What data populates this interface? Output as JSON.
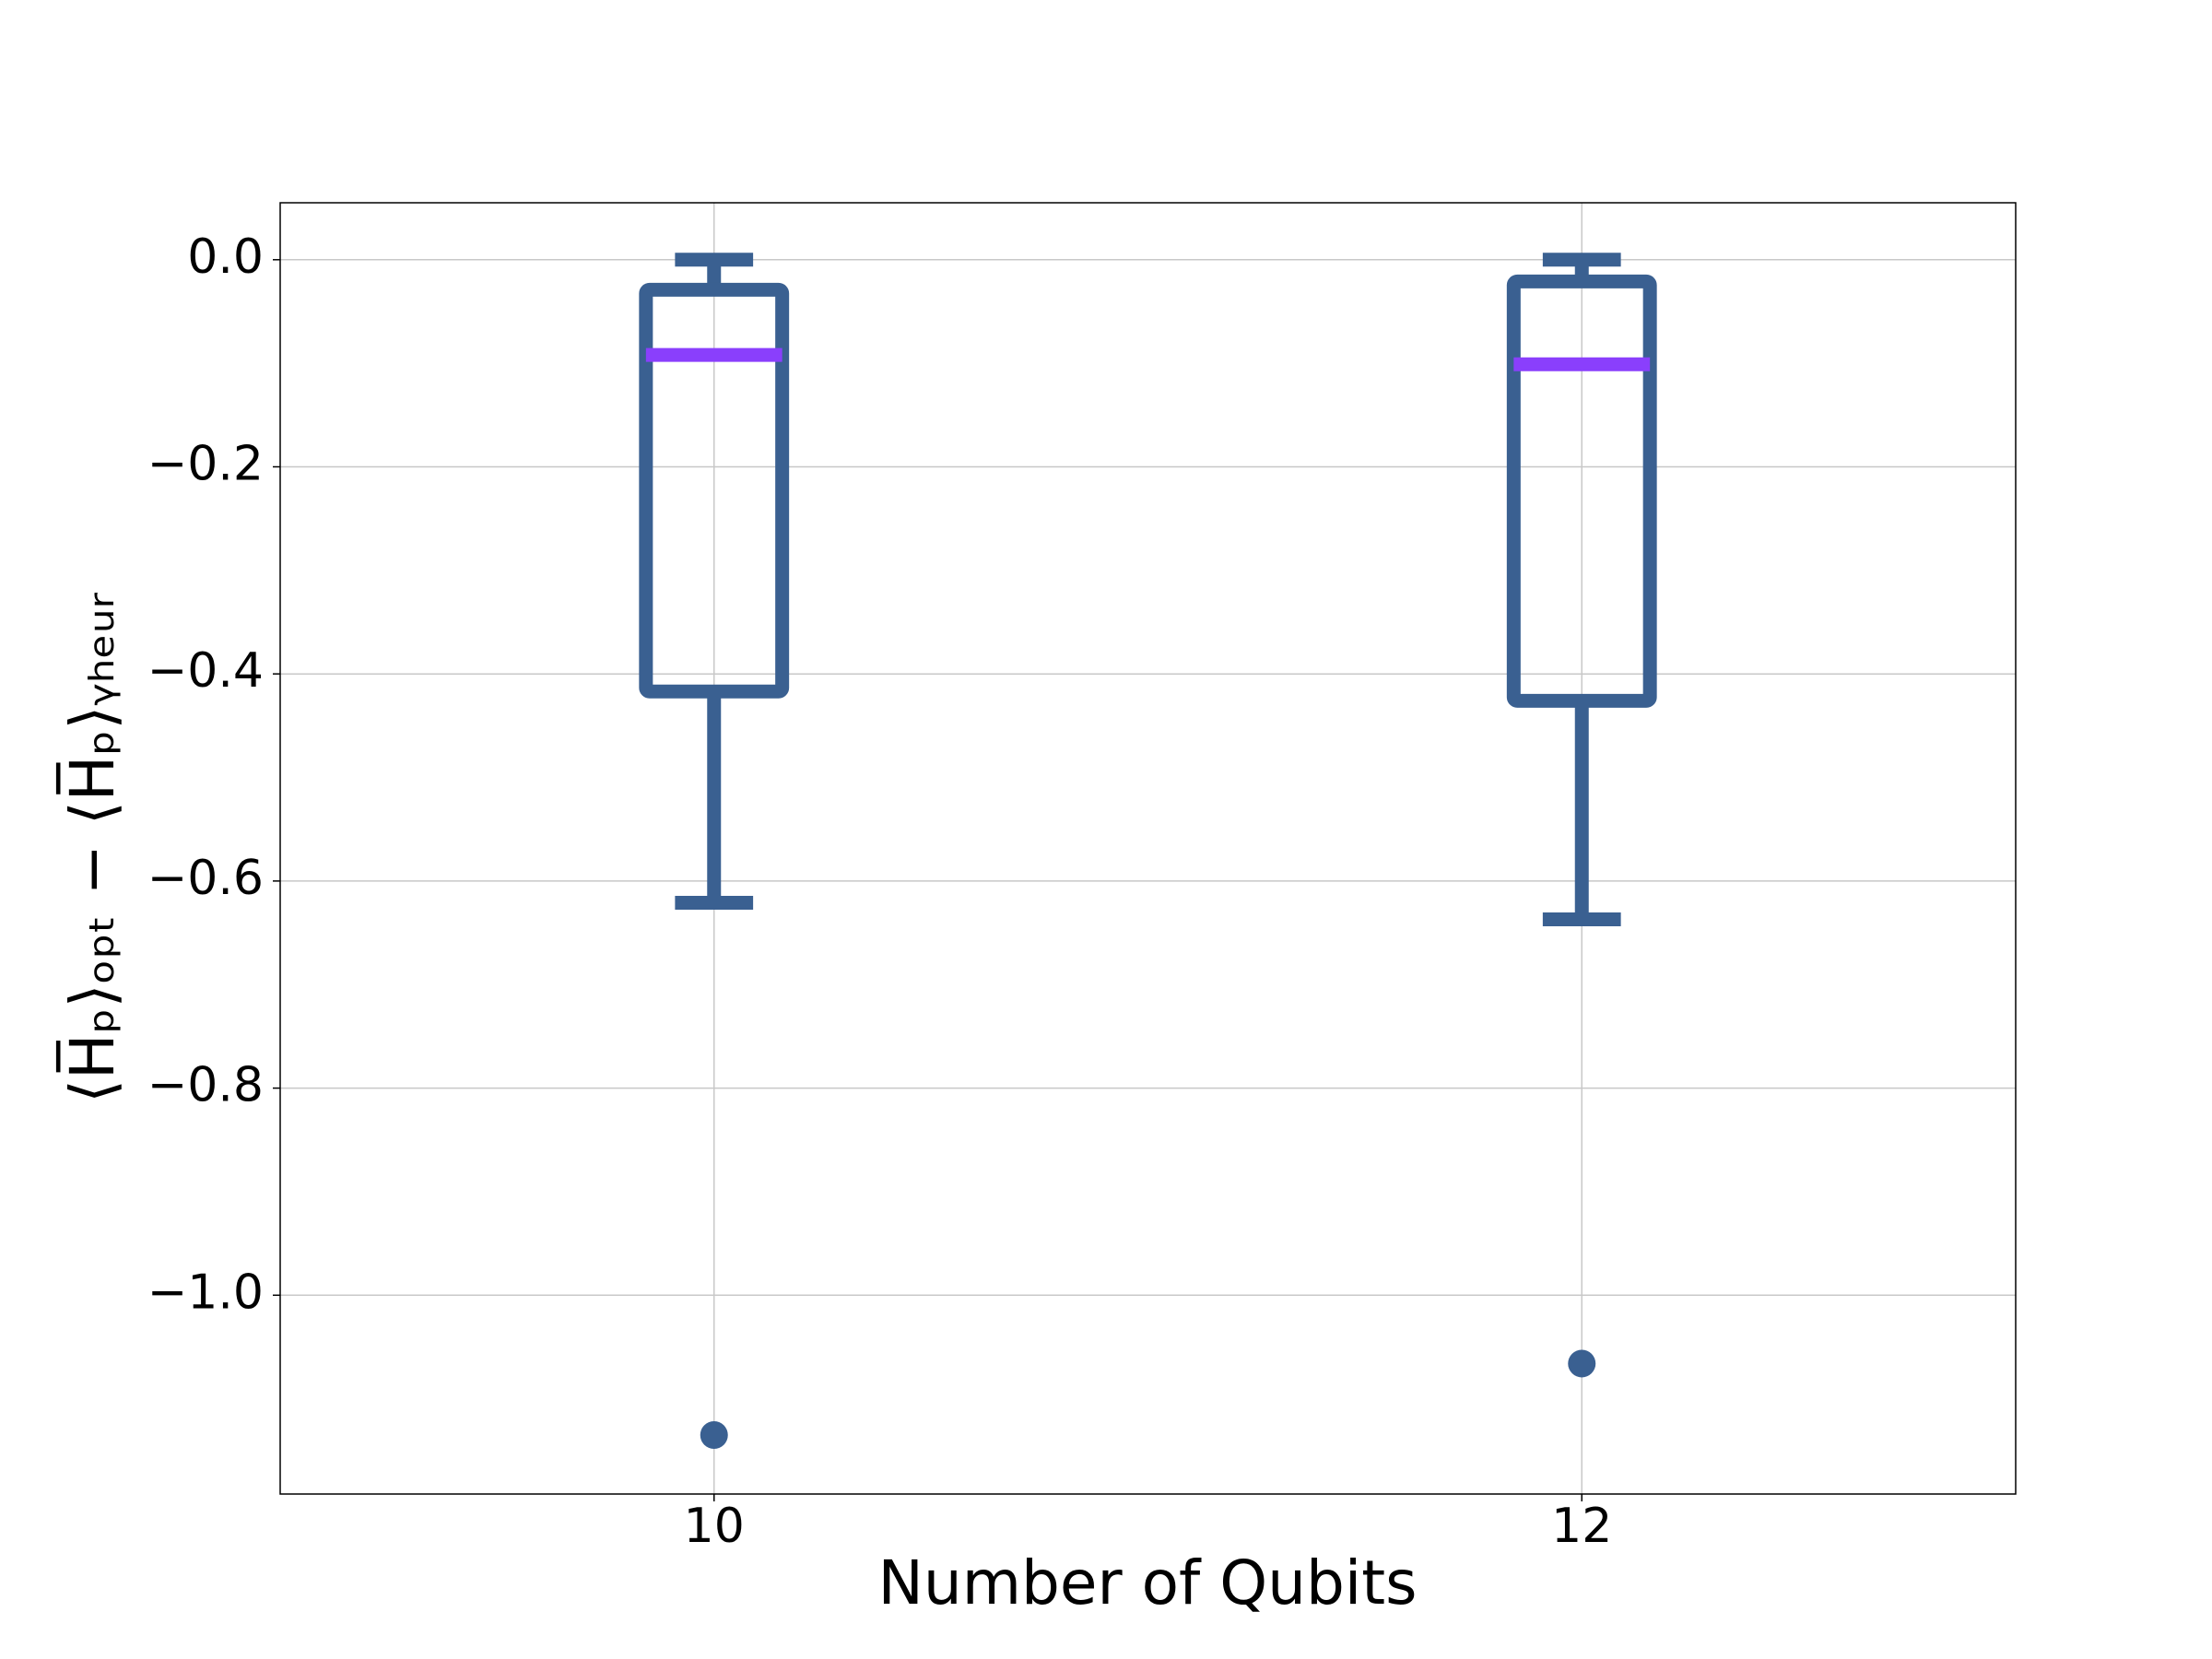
{
  "chart_data": {
    "type": "box",
    "xlabel": "Number of Qubits",
    "ylabel": "⟨H̅ₚ⟩ₒₚₜ − ⟨H̅ₚ⟩ᵧₕₑᵤᵣ",
    "categories": [
      "10",
      "12"
    ],
    "color": "#3a6091",
    "median_color": "#8a3ffc",
    "boxes": [
      {
        "whislo": -0.621,
        "q1": -0.417,
        "median": -0.092,
        "q3": -0.029,
        "whishi": 0,
        "fliers": [
          -1.135
        ]
      },
      {
        "whislo": -0.637,
        "q1": -0.426,
        "median": -0.101,
        "q3": -0.021,
        "whishi": 0,
        "fliers": [
          -1.066
        ]
      }
    ],
    "ylim": [
      -1.192,
      0.055
    ],
    "yticks": [
      {
        "value": 0,
        "label": "0.0"
      },
      {
        "value": -0.2,
        "label": "−0.2"
      },
      {
        "value": -0.4,
        "label": "−0.4"
      },
      {
        "value": -0.6,
        "label": "−0.6"
      },
      {
        "value": -0.8,
        "label": "−0.8"
      },
      {
        "value": -1.0,
        "label": "−1.0"
      }
    ],
    "grid": true
  }
}
